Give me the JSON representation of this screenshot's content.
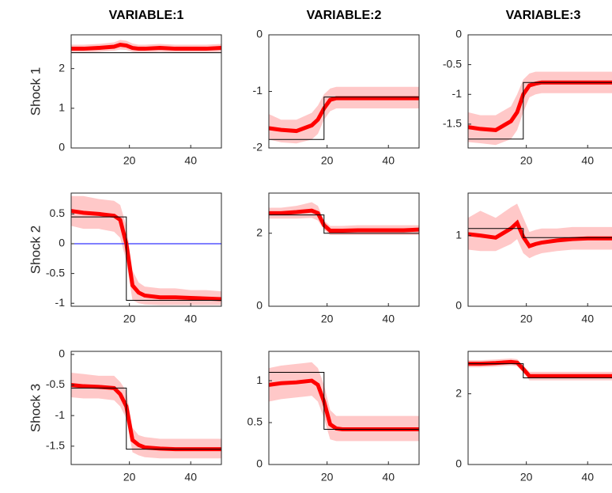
{
  "chart_data": [
    {
      "type": "line",
      "title": "VARIABLE:1",
      "ylabel": "Shock 1",
      "xlim": [
        1,
        50
      ],
      "ylim": [
        0,
        2.85
      ],
      "xticks": [
        20,
        40
      ],
      "yticks": [
        0,
        1,
        2
      ],
      "x": [
        1,
        5,
        10,
        15,
        17,
        19,
        21,
        23,
        25,
        30,
        35,
        40,
        45,
        50
      ],
      "band": {
        "color": "#ffc8c8",
        "lower": [
          2.4,
          2.4,
          2.42,
          2.45,
          2.48,
          2.47,
          2.42,
          2.4,
          2.4,
          2.42,
          2.4,
          2.4,
          2.4,
          2.42
        ],
        "upper": [
          2.6,
          2.6,
          2.62,
          2.66,
          2.72,
          2.7,
          2.63,
          2.6,
          2.6,
          2.62,
          2.6,
          2.6,
          2.6,
          2.62
        ]
      },
      "series": [
        {
          "color": "#ff0000",
          "values": [
            2.5,
            2.5,
            2.52,
            2.55,
            2.6,
            2.58,
            2.52,
            2.5,
            2.5,
            2.52,
            2.5,
            2.5,
            2.5,
            2.52
          ]
        },
        {
          "color": "#000000",
          "x": [
            1,
            19,
            19,
            50
          ],
          "values": [
            2.4,
            2.4,
            2.4,
            2.4
          ]
        }
      ]
    },
    {
      "type": "line",
      "title": "VARIABLE:2",
      "xlim": [
        1,
        50
      ],
      "ylim": [
        -2,
        0
      ],
      "xticks": [
        20,
        40
      ],
      "yticks": [
        -2,
        -1,
        0
      ],
      "x": [
        1,
        5,
        10,
        15,
        17,
        19,
        21,
        23,
        25,
        30,
        35,
        40,
        45,
        50
      ],
      "band": {
        "color": "#ffc8c8",
        "lower": [
          -1.85,
          -1.9,
          -1.92,
          -1.85,
          -1.75,
          -1.5,
          -1.35,
          -1.3,
          -1.3,
          -1.3,
          -1.3,
          -1.3,
          -1.3,
          -1.3
        ],
        "upper": [
          -1.4,
          -1.5,
          -1.5,
          -1.38,
          -1.25,
          -1.05,
          -0.95,
          -0.92,
          -0.92,
          -0.92,
          -0.92,
          -0.92,
          -0.92,
          -0.92
        ]
      },
      "series": [
        {
          "color": "#ff0000",
          "values": [
            -1.65,
            -1.68,
            -1.7,
            -1.6,
            -1.5,
            -1.3,
            -1.15,
            -1.12,
            -1.12,
            -1.12,
            -1.12,
            -1.12,
            -1.12,
            -1.12
          ]
        },
        {
          "color": "#000000",
          "x": [
            1,
            19,
            19,
            50
          ],
          "values": [
            -1.85,
            -1.85,
            -1.1,
            -1.1
          ]
        }
      ]
    },
    {
      "type": "line",
      "title": "VARIABLE:3",
      "xlim": [
        1,
        50
      ],
      "ylim": [
        -1.9,
        0
      ],
      "xticks": [
        20,
        40
      ],
      "yticks": [
        -1.5,
        -1,
        -0.5,
        0
      ],
      "x": [
        1,
        5,
        10,
        15,
        17,
        19,
        21,
        23,
        25,
        30,
        35,
        40,
        45,
        50
      ],
      "band": {
        "color": "#ffc8c8",
        "lower": [
          -1.8,
          -1.82,
          -1.85,
          -1.75,
          -1.6,
          -1.3,
          -1.05,
          -1.0,
          -0.98,
          -0.98,
          -0.98,
          -0.98,
          -0.98,
          -0.98
        ],
        "upper": [
          -1.3,
          -1.35,
          -1.35,
          -1.2,
          -1.0,
          -0.75,
          -0.65,
          -0.62,
          -0.62,
          -0.62,
          -0.62,
          -0.62,
          -0.62,
          -0.62
        ]
      },
      "series": [
        {
          "color": "#ff0000",
          "values": [
            -1.55,
            -1.58,
            -1.6,
            -1.45,
            -1.3,
            -1.0,
            -0.85,
            -0.82,
            -0.8,
            -0.8,
            -0.8,
            -0.8,
            -0.8,
            -0.8
          ]
        },
        {
          "color": "#000000",
          "x": [
            1,
            19,
            19,
            50
          ],
          "values": [
            -1.75,
            -1.75,
            -0.8,
            -0.8
          ]
        }
      ]
    },
    {
      "type": "line",
      "ylabel": "Shock 2",
      "xlim": [
        1,
        50
      ],
      "ylim": [
        -1.05,
        0.85
      ],
      "xticks": [
        20,
        40
      ],
      "yticks": [
        -1,
        -0.5,
        0,
        0.5
      ],
      "hline": {
        "value": 0,
        "color": "#0000ff"
      },
      "x": [
        1,
        5,
        10,
        15,
        17,
        19,
        21,
        23,
        25,
        30,
        35,
        40,
        45,
        50
      ],
      "band": {
        "color": "#ffc8c8",
        "lower": [
          0.3,
          0.25,
          0.25,
          0.2,
          0.1,
          -0.3,
          -0.95,
          -1.0,
          -1.02,
          -1.03,
          -1.03,
          -1.03,
          -1.03,
          -1.03
        ],
        "upper": [
          0.8,
          0.8,
          0.75,
          0.72,
          0.65,
          0.3,
          -0.45,
          -0.65,
          -0.72,
          -0.75,
          -0.75,
          -0.78,
          -0.78,
          -0.8
        ]
      },
      "series": [
        {
          "color": "#ff0000",
          "values": [
            0.55,
            0.52,
            0.5,
            0.47,
            0.4,
            0.0,
            -0.7,
            -0.82,
            -0.87,
            -0.9,
            -0.9,
            -0.91,
            -0.92,
            -0.93
          ]
        },
        {
          "color": "#000000",
          "x": [
            1,
            19,
            19,
            50
          ],
          "values": [
            0.45,
            0.45,
            -0.95,
            -0.95
          ]
        }
      ]
    },
    {
      "type": "line",
      "xlim": [
        1,
        50
      ],
      "ylim": [
        0,
        3.1
      ],
      "xticks": [
        20,
        40
      ],
      "yticks": [
        0,
        2
      ],
      "x": [
        1,
        5,
        10,
        15,
        17,
        19,
        21,
        23,
        25,
        30,
        35,
        40,
        45,
        50
      ],
      "band": {
        "color": "#ffc8c8",
        "lower": [
          2.4,
          2.4,
          2.4,
          2.42,
          2.35,
          2.1,
          1.95,
          1.95,
          1.95,
          1.95,
          1.95,
          1.95,
          1.95,
          1.95
        ],
        "upper": [
          2.7,
          2.7,
          2.75,
          2.85,
          2.75,
          2.35,
          2.2,
          2.2,
          2.2,
          2.22,
          2.22,
          2.22,
          2.22,
          2.22
        ]
      },
      "series": [
        {
          "color": "#ff0000",
          "values": [
            2.55,
            2.55,
            2.58,
            2.62,
            2.55,
            2.22,
            2.07,
            2.07,
            2.07,
            2.08,
            2.08,
            2.08,
            2.08,
            2.1
          ]
        },
        {
          "color": "#000000",
          "x": [
            1,
            19,
            19,
            50
          ],
          "values": [
            2.5,
            2.5,
            2.0,
            2.0
          ]
        }
      ]
    },
    {
      "type": "line",
      "xlim": [
        1,
        50
      ],
      "ylim": [
        0,
        1.6
      ],
      "xticks": [
        20,
        40
      ],
      "yticks": [
        0,
        1
      ],
      "x": [
        1,
        5,
        10,
        15,
        17,
        19,
        21,
        23,
        25,
        30,
        35,
        40,
        45,
        50
      ],
      "band": {
        "color": "#ffc8c8",
        "lower": [
          0.8,
          0.78,
          0.78,
          0.88,
          0.95,
          0.75,
          0.68,
          0.72,
          0.75,
          0.78,
          0.8,
          0.8,
          0.8,
          0.8
        ],
        "upper": [
          1.25,
          1.35,
          1.25,
          1.4,
          1.45,
          1.25,
          1.05,
          1.08,
          1.1,
          1.1,
          1.12,
          1.12,
          1.12,
          1.12
        ]
      },
      "series": [
        {
          "color": "#ff0000",
          "values": [
            1.02,
            1.0,
            0.97,
            1.1,
            1.18,
            0.98,
            0.85,
            0.88,
            0.9,
            0.93,
            0.95,
            0.96,
            0.96,
            0.96
          ]
        },
        {
          "color": "#000000",
          "x": [
            1,
            19,
            19,
            50
          ],
          "values": [
            1.1,
            1.1,
            0.97,
            0.97
          ]
        }
      ]
    },
    {
      "type": "line",
      "ylabel": "Shock 3",
      "xlim": [
        1,
        50
      ],
      "ylim": [
        -1.8,
        0.05
      ],
      "xticks": [
        20,
        40
      ],
      "yticks": [
        -1.5,
        -1,
        -0.5,
        0
      ],
      "x": [
        1,
        5,
        10,
        15,
        17,
        19,
        21,
        23,
        25,
        30,
        35,
        40,
        45,
        50
      ],
      "band": {
        "color": "#ffc8c8",
        "lower": [
          -0.7,
          -0.72,
          -0.72,
          -0.75,
          -0.85,
          -1.05,
          -1.6,
          -1.65,
          -1.68,
          -1.7,
          -1.7,
          -1.7,
          -1.7,
          -1.7
        ],
        "upper": [
          -0.3,
          -0.32,
          -0.35,
          -0.35,
          -0.45,
          -0.6,
          -1.2,
          -1.32,
          -1.35,
          -1.38,
          -1.38,
          -1.38,
          -1.38,
          -1.38
        ]
      },
      "series": [
        {
          "color": "#ff0000",
          "values": [
            -0.5,
            -0.52,
            -0.53,
            -0.55,
            -0.65,
            -0.85,
            -1.4,
            -1.48,
            -1.52,
            -1.54,
            -1.55,
            -1.55,
            -1.55,
            -1.55
          ]
        },
        {
          "color": "#000000",
          "x": [
            1,
            19,
            19,
            50
          ],
          "values": [
            -0.55,
            -0.55,
            -1.55,
            -1.55
          ]
        }
      ]
    },
    {
      "type": "line",
      "xlim": [
        1,
        50
      ],
      "ylim": [
        0,
        1.35
      ],
      "xticks": [
        20,
        40
      ],
      "yticks": [
        0,
        0.5,
        1
      ],
      "x": [
        1,
        5,
        10,
        15,
        17,
        19,
        21,
        23,
        25,
        30,
        35,
        40,
        45,
        50
      ],
      "band": {
        "color": "#ffc8c8",
        "lower": [
          0.75,
          0.78,
          0.8,
          0.82,
          0.75,
          0.55,
          0.3,
          0.28,
          0.28,
          0.28,
          0.28,
          0.28,
          0.28,
          0.28
        ],
        "upper": [
          1.15,
          1.18,
          1.2,
          1.22,
          1.15,
          0.95,
          0.65,
          0.58,
          0.58,
          0.58,
          0.58,
          0.58,
          0.58,
          0.58
        ]
      },
      "series": [
        {
          "color": "#ff0000",
          "values": [
            0.95,
            0.97,
            0.98,
            1.0,
            0.95,
            0.75,
            0.48,
            0.43,
            0.42,
            0.42,
            0.42,
            0.42,
            0.42,
            0.42
          ]
        },
        {
          "color": "#000000",
          "x": [
            1,
            19,
            19,
            50
          ],
          "values": [
            1.1,
            1.1,
            0.42,
            0.42
          ]
        }
      ]
    },
    {
      "type": "line",
      "xlim": [
        1,
        50
      ],
      "ylim": [
        0,
        3.2
      ],
      "xticks": [
        20,
        40
      ],
      "yticks": [
        0,
        2
      ],
      "x": [
        1,
        5,
        10,
        15,
        17,
        19,
        21,
        23,
        25,
        30,
        35,
        40,
        45,
        50
      ],
      "band": {
        "color": "#ffc8c8",
        "lower": [
          2.75,
          2.75,
          2.77,
          2.8,
          2.78,
          2.6,
          2.38,
          2.38,
          2.38,
          2.38,
          2.38,
          2.38,
          2.38,
          2.38
        ],
        "upper": [
          2.95,
          2.95,
          2.97,
          3.0,
          2.98,
          2.8,
          2.62,
          2.62,
          2.62,
          2.62,
          2.62,
          2.62,
          2.62,
          2.62
        ]
      },
      "series": [
        {
          "color": "#ff0000",
          "values": [
            2.85,
            2.85,
            2.87,
            2.9,
            2.88,
            2.7,
            2.5,
            2.5,
            2.5,
            2.5,
            2.5,
            2.5,
            2.5,
            2.5
          ]
        },
        {
          "color": "#000000",
          "x": [
            1,
            19,
            19,
            50
          ],
          "values": [
            2.85,
            2.85,
            2.45,
            2.45
          ]
        }
      ]
    }
  ]
}
